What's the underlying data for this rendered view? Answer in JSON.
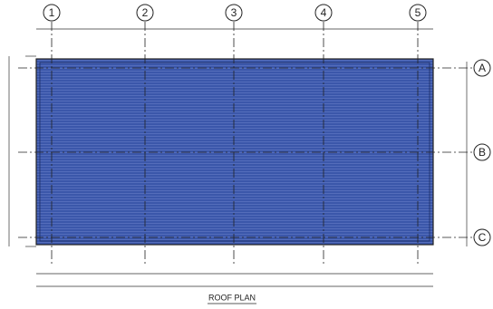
{
  "grid_columns": [
    "1",
    "2",
    "3",
    "4",
    "5"
  ],
  "grid_rows": [
    "A",
    "B",
    "C"
  ],
  "title": "ROOF PLAN"
}
